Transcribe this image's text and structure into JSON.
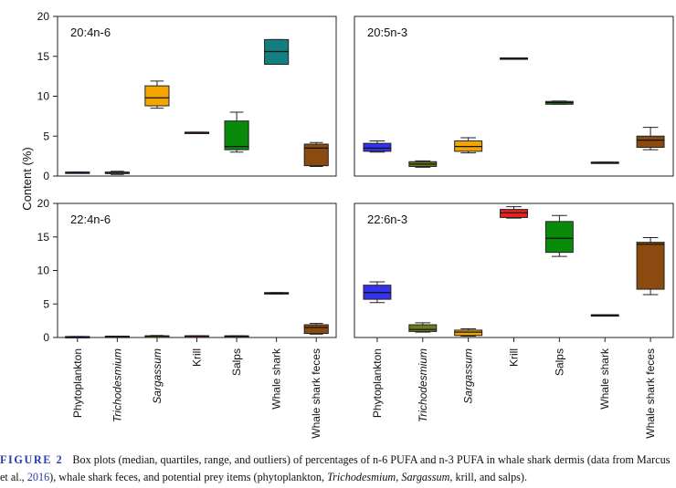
{
  "chart_data": {
    "type": "box",
    "ylabel": "Content (%)",
    "categories": [
      "Phytoplankton",
      "Trichodesmium",
      "Sargassum",
      "Krill",
      "Salps",
      "Whale shark",
      "Whale shark feces"
    ],
    "italic_categories": [
      "Trichodesmium",
      "Sargassum"
    ],
    "colors": [
      "#3333ee",
      "#6a7d1e",
      "#f5a500",
      "#e82020",
      "#0a8a0a",
      "#137f80",
      "#8a4a10"
    ],
    "ylim": [
      0,
      20
    ],
    "yticks": [
      0,
      5,
      10,
      15,
      20
    ],
    "panels": [
      {
        "label": "20:4n-6",
        "boxes": [
          {
            "category": "Phytoplankton",
            "min": 0.4,
            "q1": 0.4,
            "median": 0.45,
            "q3": 0.5,
            "max": 0.5
          },
          {
            "category": "Trichodesmium",
            "min": 0.2,
            "q1": 0.3,
            "median": 0.45,
            "q3": 0.5,
            "max": 0.6
          },
          {
            "category": "Sargassum",
            "min": 8.5,
            "q1": 8.8,
            "median": 9.8,
            "q3": 11.3,
            "max": 11.9
          },
          {
            "category": "Krill",
            "min": 5.4,
            "q1": 5.4,
            "median": 5.45,
            "q3": 5.5,
            "max": 5.5
          },
          {
            "category": "Salps",
            "min": 3.0,
            "q1": 3.3,
            "median": 3.7,
            "q3": 6.9,
            "max": 8.0
          },
          {
            "category": "Whale shark",
            "min": 14.0,
            "q1": 14.0,
            "median": 15.6,
            "q3": 17.1,
            "max": 17.1
          },
          {
            "category": "Whale shark feces",
            "min": 1.2,
            "q1": 1.3,
            "median": 3.5,
            "q3": 4.0,
            "max": 4.2
          }
        ]
      },
      {
        "label": "20:5n-3",
        "boxes": [
          {
            "category": "Phytoplankton",
            "min": 3.0,
            "q1": 3.1,
            "median": 3.5,
            "q3": 4.1,
            "max": 4.4
          },
          {
            "category": "Trichodesmium",
            "min": 1.1,
            "q1": 1.2,
            "median": 1.5,
            "q3": 1.8,
            "max": 1.9
          },
          {
            "category": "Sargassum",
            "min": 2.9,
            "q1": 3.1,
            "median": 3.7,
            "q3": 4.4,
            "max": 4.8
          },
          {
            "category": "Krill",
            "min": 14.7,
            "q1": 14.7,
            "median": 14.75,
            "q3": 14.8,
            "max": 14.8
          },
          {
            "category": "Salps",
            "min": 9.0,
            "q1": 9.0,
            "median": 9.2,
            "q3": 9.35,
            "max": 9.4
          },
          {
            "category": "Whale shark",
            "min": 1.65,
            "q1": 1.65,
            "median": 1.7,
            "q3": 1.75,
            "max": 1.75
          },
          {
            "category": "Whale shark feces",
            "min": 3.3,
            "q1": 3.6,
            "median": 4.5,
            "q3": 5.0,
            "max": 6.1
          }
        ]
      },
      {
        "label": "22:4n-6",
        "boxes": [
          {
            "category": "Phytoplankton",
            "min": 0.1,
            "q1": 0.1,
            "median": 0.12,
            "q3": 0.15,
            "max": 0.15
          },
          {
            "category": "Trichodesmium",
            "min": 0.1,
            "q1": 0.1,
            "median": 0.15,
            "q3": 0.2,
            "max": 0.2
          },
          {
            "category": "Sargassum",
            "min": 0.1,
            "q1": 0.12,
            "median": 0.2,
            "q3": 0.25,
            "max": 0.3
          },
          {
            "category": "Krill",
            "min": 0.2,
            "q1": 0.2,
            "median": 0.22,
            "q3": 0.25,
            "max": 0.25
          },
          {
            "category": "Salps",
            "min": 0.15,
            "q1": 0.15,
            "median": 0.2,
            "q3": 0.25,
            "max": 0.25
          },
          {
            "category": "Whale shark",
            "min": 6.5,
            "q1": 6.5,
            "median": 6.6,
            "q3": 6.7,
            "max": 6.7
          },
          {
            "category": "Whale shark feces",
            "min": 0.5,
            "q1": 0.6,
            "median": 1.5,
            "q3": 1.9,
            "max": 2.1
          }
        ]
      },
      {
        "label": "22:6n-3",
        "boxes": [
          {
            "category": "Phytoplankton",
            "min": 5.2,
            "q1": 5.7,
            "median": 6.7,
            "q3": 7.8,
            "max": 8.3
          },
          {
            "category": "Trichodesmium",
            "min": 0.8,
            "q1": 0.9,
            "median": 1.2,
            "q3": 1.9,
            "max": 2.2
          },
          {
            "category": "Sargassum",
            "min": 0.2,
            "q1": 0.3,
            "median": 0.8,
            "q3": 1.1,
            "max": 1.3
          },
          {
            "category": "Krill",
            "min": 17.8,
            "q1": 17.9,
            "median": 18.6,
            "q3": 19.1,
            "max": 19.5
          },
          {
            "category": "Salps",
            "min": 12.1,
            "q1": 12.7,
            "median": 14.8,
            "q3": 17.3,
            "max": 18.2
          },
          {
            "category": "Whale shark",
            "min": 3.2,
            "q1": 3.2,
            "median": 3.3,
            "q3": 3.4,
            "max": 3.4
          },
          {
            "category": "Whale shark feces",
            "min": 6.4,
            "q1": 7.2,
            "median": 13.9,
            "q3": 14.2,
            "max": 14.9
          }
        ]
      }
    ]
  },
  "caption": {
    "label": "FIGURE 2",
    "part1": "Box plots (median, quartiles, range, and outliers) of percentages of n-6 PUFA and n-3 PUFA in whale shark dermis (data from Marcus et al., ",
    "link": "2016",
    "part2": "), whale shark feces, and potential prey items (phytoplankton, ",
    "italic1": "Trichodesmium",
    "part3": ", ",
    "italic2": "Sargassum",
    "part4": ", krill, and salps)."
  }
}
